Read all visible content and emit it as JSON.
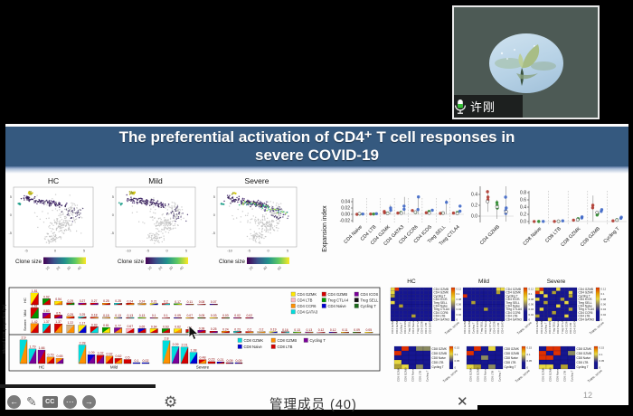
{
  "webcam": {
    "name": "许刚",
    "mic_icon": "microphone"
  },
  "slide": {
    "title_line1": "The preferential activation of CD4⁺ T cell responses in",
    "title_line2": "severe COVID-19",
    "page_number": "12"
  },
  "toolbar": {
    "prev_glyph": "←",
    "pen_glyph": "✎",
    "cc_label": "CC",
    "more_glyph": "⋯",
    "next_glyph": "→",
    "gear_glyph": "⚙",
    "member_text": "管理成员 (40)",
    "close_glyph": "✕"
  },
  "palette": {
    "yellow": "#ffe800",
    "red": "#d40000",
    "pink": "#ffb6c1",
    "green": "#009600",
    "orange": "#ff9000",
    "purple": "#7a0099",
    "cyan": "#00dcdc",
    "blue": "#0000d4",
    "tan": "#d2b48c",
    "black": "#111111",
    "dkgreen": "#1a6b1a"
  },
  "chart_data": [
    {
      "type": "scatter",
      "id": "umap",
      "title_row": [
        "HC",
        "Mild",
        "Severe"
      ],
      "colorbar_label": "Clone size",
      "y_ticks": [
        "5",
        "0",
        "-5"
      ],
      "x_ticks": [
        [
          "-5",
          "0",
          "5"
        ],
        [
          "-10",
          "-5",
          "0",
          "5"
        ],
        [
          "-10",
          "-5",
          "0",
          "5"
        ]
      ],
      "clone_ticks": [
        [
          "10",
          "20",
          "30",
          "40"
        ],
        [
          "10",
          "20",
          "30",
          "40"
        ],
        [
          "20",
          "40",
          "60"
        ]
      ],
      "viridis": [
        "#440154",
        "#3b528b",
        "#21918c",
        "#5ec962",
        "#fde725"
      ]
    },
    {
      "type": "scatter",
      "id": "expansion",
      "ylabel": "Expansion index",
      "panels": [
        {
          "categories": [
            "CD4 Naive",
            "CD4 LTB",
            "CD4 GZMK",
            "CD4 GATA3",
            "CD4 CCR6",
            "CD4 ICOS",
            "Treg SELL",
            "Treg CTLA4"
          ],
          "yticks": [
            "0.04",
            "0.02",
            "0.00",
            "-0.02"
          ],
          "points": [
            [
              0,
              -1,
              0.0,
              "r"
            ],
            [
              0,
              0,
              0.001,
              "g"
            ],
            [
              0,
              1,
              0.001,
              "b"
            ],
            [
              0,
              0,
              0.002,
              "w"
            ],
            [
              1,
              -1,
              0.001,
              "r"
            ],
            [
              1,
              0,
              0.001,
              "g"
            ],
            [
              1,
              1,
              0.002,
              "b"
            ],
            [
              2,
              -1,
              0.005,
              "r"
            ],
            [
              2,
              -1,
              0.009,
              "r"
            ],
            [
              2,
              0,
              0.004,
              "g"
            ],
            [
              2,
              1,
              0.02,
              "b"
            ],
            [
              2,
              1,
              0.013,
              "b"
            ],
            [
              2,
              0,
              0.003,
              "w"
            ],
            [
              3,
              -1,
              0.004,
              "r"
            ],
            [
              3,
              0,
              0.006,
              "g"
            ],
            [
              3,
              1,
              0.026,
              "b"
            ],
            [
              3,
              1,
              0.016,
              "b"
            ],
            [
              3,
              0,
              0.004,
              "w"
            ],
            [
              4,
              -1,
              0.012,
              "r"
            ],
            [
              4,
              0,
              0.006,
              "g"
            ],
            [
              4,
              1,
              0.015,
              "b"
            ],
            [
              4,
              1,
              0.055,
              "b"
            ],
            [
              4,
              0,
              0.007,
              "w"
            ],
            [
              5,
              -1,
              0.005,
              "r"
            ],
            [
              5,
              0,
              0.009,
              "g"
            ],
            [
              5,
              1,
              0.013,
              "b"
            ],
            [
              5,
              0,
              0.004,
              "w"
            ],
            [
              6,
              -1,
              0.003,
              "r"
            ],
            [
              6,
              0,
              0.004,
              "g"
            ],
            [
              6,
              1,
              0.038,
              "b"
            ],
            [
              6,
              0,
              0.004,
              "w"
            ],
            [
              7,
              -1,
              0.004,
              "r"
            ],
            [
              7,
              0,
              0.006,
              "g"
            ],
            [
              7,
              1,
              0.01,
              "b"
            ],
            [
              7,
              1,
              0.026,
              "b"
            ],
            [
              7,
              0,
              0.003,
              "w"
            ]
          ],
          "lines": [
            [
              2,
              1,
              0,
              0.03
            ],
            [
              3,
              1,
              0,
              0.055
            ],
            [
              4,
              1,
              0,
              0.055
            ],
            [
              6,
              1,
              0,
              0.046
            ]
          ]
        },
        {
          "categories": [
            "CD4 GZMB"
          ],
          "yticks": [
            "0.4",
            "0.2",
            "0.0"
          ],
          "points": [
            [
              0,
              -1,
              0.3,
              "r"
            ],
            [
              0,
              -1,
              0.45,
              "r"
            ],
            [
              0,
              -1,
              0.35,
              "r"
            ],
            [
              0,
              -1,
              0.27,
              "w"
            ],
            [
              0,
              0,
              0.15,
              "g"
            ],
            [
              0,
              0,
              0.2,
              "g"
            ],
            [
              0,
              0,
              0.25,
              "g"
            ],
            [
              0,
              0,
              0.17,
              "w"
            ],
            [
              0,
              1,
              0.05,
              "b"
            ],
            [
              0,
              1,
              0.1,
              "b"
            ],
            [
              0,
              1,
              0.35,
              "b"
            ],
            [
              0,
              1,
              0.15,
              "b"
            ],
            [
              0,
              1,
              0.08,
              "w"
            ]
          ],
          "lines": [
            [
              0,
              -1,
              0.08,
              0.48
            ],
            [
              0,
              0,
              -0.05,
              0.3
            ],
            [
              0,
              1,
              -0.1,
              0.55
            ]
          ]
        },
        {
          "categories": [
            "CD8 Naive",
            "CD8 LTB",
            "CD8 GZMK",
            "CD8 GZMB",
            "Cycling T"
          ],
          "yticks": [
            "0.8",
            "0.6",
            "0.4",
            "0.2",
            "0.0"
          ],
          "points": [
            [
              0,
              -1,
              0.002,
              "r"
            ],
            [
              0,
              0,
              0.003,
              "g"
            ],
            [
              0,
              1,
              0.004,
              "b"
            ],
            [
              1,
              -1,
              0.004,
              "r"
            ],
            [
              1,
              0,
              0.005,
              "g"
            ],
            [
              1,
              1,
              0.02,
              "b"
            ],
            [
              1,
              0,
              0.01,
              "w"
            ],
            [
              2,
              -1,
              0.04,
              "r"
            ],
            [
              2,
              0,
              0.06,
              "g"
            ],
            [
              2,
              0,
              0.08,
              "g"
            ],
            [
              2,
              1,
              0.1,
              "b"
            ],
            [
              2,
              1,
              0.13,
              "b"
            ],
            [
              2,
              0,
              0.05,
              "w"
            ],
            [
              3,
              -1,
              0.45,
              "r"
            ],
            [
              3,
              -1,
              0.38,
              "r"
            ],
            [
              3,
              0,
              0.18,
              "g"
            ],
            [
              3,
              0,
              0.22,
              "g"
            ],
            [
              3,
              1,
              0.28,
              "b"
            ],
            [
              3,
              1,
              0.33,
              "b"
            ],
            [
              3,
              0,
              0.25,
              "w"
            ],
            [
              4,
              -1,
              0.02,
              "r"
            ],
            [
              4,
              0,
              0.05,
              "g"
            ],
            [
              4,
              1,
              0.09,
              "b"
            ],
            [
              4,
              1,
              0.12,
              "b"
            ],
            [
              4,
              0,
              0.04,
              "w"
            ]
          ],
          "lines": [
            [
              3,
              -1,
              0,
              0.72
            ]
          ]
        }
      ],
      "point_colors": {
        "r": "#b03a30",
        "g": "#2e8b2e",
        "b": "#4169c8",
        "w": "#ffffff"
      }
    },
    {
      "type": "bar",
      "id": "shared-tcr-clones",
      "ylabel": "Shared TCR proportion (%)",
      "rows": [
        {
          "label": "HC",
          "values": [
            1.81,
            0.92,
            0.54,
            0.29,
            0.27,
            0.27,
            0.25,
            0.25,
            0.24,
            0.24,
            0.21,
            0.2,
            0.17,
            0.11,
            0.08,
            0.07
          ]
        },
        {
          "label": "Mild",
          "values": [
            1.61,
            0.83,
            0.5,
            0.29,
            0.25,
            0.18,
            0.15,
            0.13,
            0.13,
            0.13,
            0.1,
            0.1,
            0.09,
            0.07,
            0.05,
            0.03,
            0.03,
            0.02,
            0.02
          ]
        },
        {
          "label": "Severe",
          "values": [
            1.42,
            1.37,
            1.37,
            1.22,
            1.17,
            0.93,
            0.81,
            0.77,
            0.67,
            0.65,
            0.64,
            0.63,
            0.62,
            0.5,
            0.38,
            0.25,
            0.24,
            0.23,
            0.2,
            0.2,
            0.19,
            0.16,
            0.13,
            0.13,
            0.12,
            0.12,
            0.11,
            0.09,
            0.05
          ]
        }
      ],
      "pair_cycle": [
        [
          "yellow",
          "red"
        ],
        [
          "green",
          "red"
        ],
        [
          "yellow",
          "orange"
        ],
        [
          "red",
          "green"
        ],
        [
          "purple",
          "red"
        ],
        [
          "red",
          "purple"
        ],
        [
          "orange",
          "red"
        ],
        [
          "cyan",
          "red"
        ],
        [
          "red",
          "orange"
        ],
        [
          "tan",
          "orange"
        ],
        [
          "yellow",
          "blue"
        ],
        [
          "red",
          "cyan"
        ],
        [
          "green",
          "yellow"
        ],
        [
          "purple",
          "orange"
        ],
        [
          "pink",
          "red"
        ],
        [
          "blue",
          "red"
        ]
      ],
      "legend": [
        [
          "CD4 GZMK",
          "yellow"
        ],
        [
          "CD4 LTB",
          "pink"
        ],
        [
          "CD4 CCR6",
          "orange"
        ],
        [
          "CD4 GATA3",
          "cyan"
        ],
        [
          "CD4 GZMB",
          "red"
        ],
        [
          "Treg CTLA4",
          "green"
        ],
        [
          "CD4 Naive",
          "blue"
        ],
        [
          "CD4 ICOS",
          "purple"
        ],
        [
          "Treg SELL",
          "black"
        ],
        [
          "Cycling T",
          "dkgreen"
        ]
      ]
    },
    {
      "type": "bar",
      "id": "shared-tcr-groups",
      "groups": [
        {
          "label": "HC",
          "bars": [
            [
              2.9,
              "cyan",
              "orange"
            ],
            [
              1.79,
              "cyan",
              "purple"
            ],
            [
              1.66,
              "purple",
              "red"
            ],
            [
              0.79,
              "orange",
              "red"
            ],
            [
              0.65,
              "orange",
              "purple"
            ]
          ]
        },
        {
          "label": "Mild",
          "bars": [
            [
              2.28,
              "cyan",
              "orange"
            ],
            [
              1.09,
              "blue",
              "purple"
            ],
            [
              1.02,
              "red",
              "purple"
            ],
            [
              0.92,
              "orange",
              "red"
            ],
            [
              0.62,
              "red",
              "orange"
            ],
            [
              0.5,
              "red",
              "red"
            ],
            [
              0.1,
              "blue",
              "blue"
            ],
            [
              0.02,
              "blue",
              "blue"
            ]
          ]
        },
        {
          "label": "Severe",
          "bars": [
            [
              2.8,
              "cyan",
              "orange"
            ],
            [
              2.09,
              "cyan",
              "purple"
            ],
            [
              2.01,
              "cyan",
              "red"
            ],
            [
              1.38,
              "cyan",
              "blue"
            ],
            [
              0.48,
              "red",
              "orange"
            ],
            [
              0.23,
              "red",
              "red"
            ],
            [
              0.21,
              "blue",
              "red"
            ],
            [
              0.09,
              "red",
              "blue"
            ],
            [
              0.09,
              "blue",
              "red"
            ]
          ]
        }
      ],
      "legend": [
        [
          "CD8 GZMK",
          "cyan"
        ],
        [
          "CD8 Naive",
          "blue"
        ],
        [
          "CD8 GZMB",
          "orange"
        ],
        [
          "CD8 LTB",
          "red"
        ],
        [
          "Cycling T",
          "purple"
        ]
      ]
    },
    {
      "type": "heatmap",
      "id": "transition-score",
      "titles": [
        "HC",
        "Mild",
        "Severe"
      ],
      "colorbar_label": "Trans. score",
      "top": {
        "row_labels": [
          "CD4 GZMB",
          "CD4 GZMK",
          "Cycling T",
          "CD4 ICOS",
          "Treg SELL",
          "CD4 Naive",
          "Treg CTLA4",
          "CD4 CCR6",
          "CD4 LTB",
          "CD4 GATA3"
        ],
        "colorbar_ticks": [
          "0.12",
          "0.1",
          "0.08",
          "0.06",
          "0.04",
          "0.02",
          "0"
        ],
        "grids": [
          [
            "yr........",
            "y.........",
            "o.........",
            "..........",
            "y.........",
            "..o.......",
            "..........",
            "..........",
            ".....o....",
            ".........."
          ],
          [
            "........yy",
            "........o.",
            "r.........",
            "..........",
            "..o.......",
            "..........",
            ".....o....",
            "..........",
            "..........",
            ".........."
          ],
          [
            "yr...y....",
            "ry..o...y.",
            "..y.....o.",
            "y.....o...",
            "..o....y..",
            ".....y....",
            ".y......o.",
            "....o.....",
            "o......y..",
            "...y......"
          ]
        ]
      },
      "bottom": {
        "row_labels": [
          "CD8 GZMK",
          "CD8 GZMB",
          "CD8 Naive",
          "CD8 LTB",
          "Cycling T"
        ],
        "colorbar_ticks": [
          "0.15",
          "0.1",
          "0.05",
          "0"
        ],
        "grids": [
          [
            ".r.gg",
            "r....",
            ".....",
            "y....",
            "oy.g."
          ],
          [
            ".r.y.",
            "r....",
            "..g..",
            ".....",
            "yo.g."
          ],
          [
            ".rr..",
            "r.r.g",
            "rr...",
            ".....",
            "yy.o."
          ]
        ]
      },
      "cell_colors": {
        ".": "#161690",
        "r": "#e03000",
        "y": "#e8d840",
        "o": "#b0a030",
        "g": "#8a8a60"
      }
    }
  ]
}
